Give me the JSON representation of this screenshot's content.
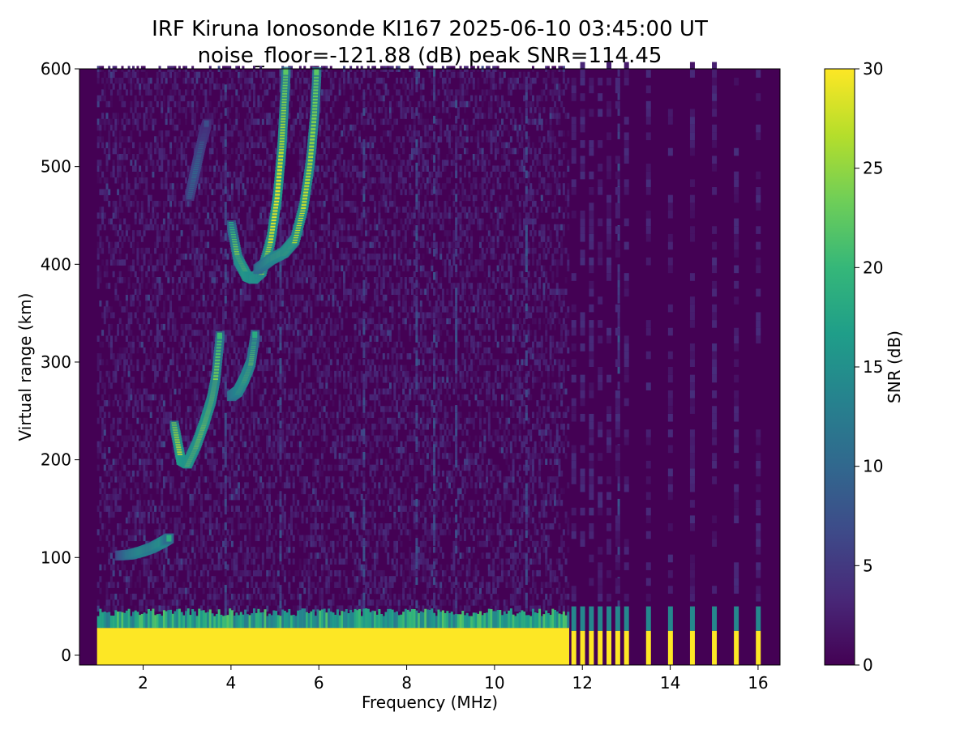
{
  "chart_data": {
    "type": "heatmap",
    "title": "IRF Kiruna Ionosonde KI167 2025-06-10 03:45:00  UT",
    "subtitle": "noise_floor=-121.88 (dB) peak SNR=114.45",
    "xlabel": "Frequency (MHz)",
    "ylabel": "Virtual range (km)",
    "xlim": [
      0.55,
      16.5
    ],
    "ylim": [
      -10,
      600
    ],
    "xticks": [
      2,
      4,
      6,
      8,
      10,
      12,
      14,
      16
    ],
    "yticks": [
      0,
      100,
      200,
      300,
      400,
      500,
      600
    ],
    "colorbar": {
      "label": "SNR (dB)",
      "range": [
        0,
        30
      ],
      "ticks": [
        0,
        5,
        10,
        15,
        20,
        25,
        30
      ],
      "colormap": "viridis"
    },
    "colormap_stops": [
      "#440154",
      "#482878",
      "#3e4a89",
      "#31688e",
      "#26828e",
      "#1f9e89",
      "#35b779",
      "#6ece58",
      "#b5de2b",
      "#fde725"
    ],
    "background_color": "#440154",
    "data_start_freq_mhz": 0.95,
    "ground_echo": {
      "range_km": [
        -10,
        45
      ],
      "snr_db": 30,
      "freq_end_mhz": 11.7
    },
    "sparse_channels_mhz": [
      11.75,
      11.95,
      12.15,
      12.35,
      12.55,
      12.75,
      12.95,
      13.45,
      13.95,
      14.45,
      14.95,
      15.45,
      15.95
    ],
    "traces": [
      {
        "name": "E-layer echo",
        "freq_mhz": [
          1.45,
          1.7,
          1.95,
          2.2,
          2.45,
          2.6
        ],
        "range_km": [
          102,
          103,
          106,
          110,
          116,
          120
        ],
        "snr_db": [
          12,
          20,
          24,
          22,
          26,
          18
        ]
      },
      {
        "name": "F-layer trace 1",
        "freq_mhz": [
          2.7,
          2.85,
          3.0,
          3.2,
          3.4,
          3.55,
          3.65,
          3.75
        ],
        "range_km": [
          235,
          200,
          196,
          215,
          240,
          262,
          285,
          330
        ],
        "snr_db": [
          24,
          30,
          28,
          27,
          28,
          26,
          24,
          20
        ]
      },
      {
        "name": "F-layer trace 2",
        "freq_mhz": [
          4.0,
          4.15,
          4.3,
          4.45,
          4.55
        ],
        "range_km": [
          265,
          270,
          283,
          300,
          330
        ],
        "snr_db": [
          20,
          24,
          26,
          24,
          18
        ]
      },
      {
        "name": "multi-hop echo 1",
        "freq_mhz": [
          4.0,
          4.15,
          4.35,
          4.5,
          4.7,
          4.9,
          5.05,
          5.15,
          5.2,
          5.25
        ],
        "range_km": [
          440,
          405,
          388,
          385,
          393,
          425,
          470,
          520,
          560,
          600
        ],
        "snr_db": [
          18,
          26,
          28,
          27,
          26,
          28,
          29,
          27,
          25,
          22
        ]
      },
      {
        "name": "multi-hop echo 2",
        "freq_mhz": [
          4.6,
          4.9,
          5.2,
          5.45,
          5.65,
          5.8,
          5.9,
          5.95
        ],
        "range_km": [
          395,
          405,
          412,
          425,
          460,
          505,
          555,
          600
        ],
        "snr_db": [
          18,
          24,
          26,
          27,
          28,
          26,
          24,
          22
        ]
      },
      {
        "name": "weak echo",
        "freq_mhz": [
          3.05,
          3.2,
          3.35,
          3.45
        ],
        "range_km": [
          470,
          500,
          530,
          545
        ],
        "snr_db": [
          10,
          12,
          9,
          7
        ]
      }
    ],
    "interference_lines_mhz": [
      3.85,
      5.1,
      7.0,
      8.2,
      8.6,
      9.1,
      10.7,
      12.8
    ]
  }
}
